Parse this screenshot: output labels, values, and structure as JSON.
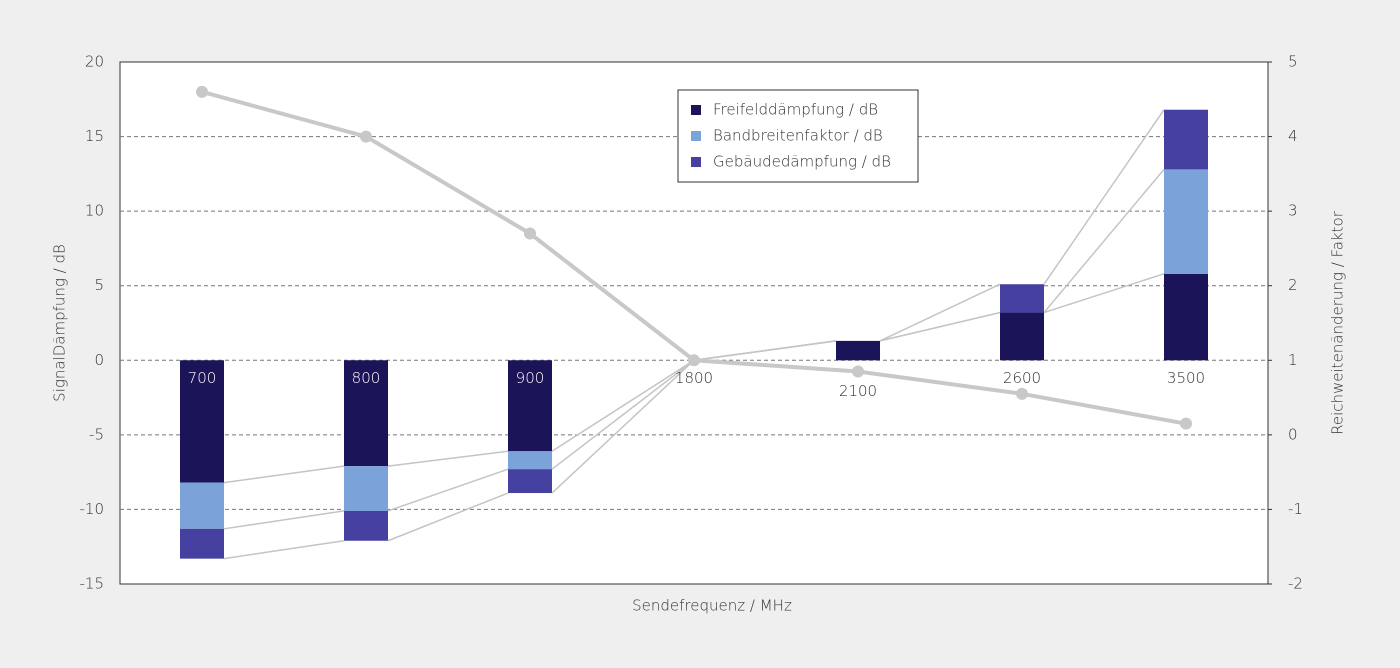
{
  "chart_data": {
    "type": "bar",
    "stacked": true,
    "x_label": "Sendefrequenz / MHz",
    "y_label": "SignalDämpfung / dB",
    "y2_label": "Reichweitenänderung / Faktor",
    "categories": [
      "700",
      "800",
      "900",
      "1800",
      "2100",
      "2600",
      "3500"
    ],
    "series": [
      {
        "name": "Freifelddämpfung / dB",
        "color": "#1b1458",
        "values": [
          -8.2,
          -7.1,
          -6.1,
          0,
          1.3,
          3.2,
          5.8
        ]
      },
      {
        "name": "Bandbreitenfaktor / dB",
        "color": "#7ba3d9",
        "values": [
          -3.1,
          -3.0,
          -1.2,
          0,
          0,
          0,
          7.0
        ]
      },
      {
        "name": "Gebäudedämpfung / dB",
        "color": "#4641a0",
        "values": [
          -2.0,
          -2.0,
          -1.6,
          0,
          0,
          1.9,
          4.0
        ]
      }
    ],
    "line": {
      "color": "#c8c8c8",
      "axis": "y2",
      "values": [
        4.6,
        4.0,
        2.7,
        1.0,
        0.85,
        0.55,
        0.15
      ]
    },
    "ylim": [
      -15,
      20
    ],
    "yticks": [
      -15,
      -10,
      -5,
      0,
      5,
      10,
      15,
      20
    ],
    "y2lim": [
      -2,
      5
    ],
    "y2ticks": [
      -2,
      -1,
      0,
      1,
      2,
      3,
      4,
      5
    ],
    "grid": true,
    "legend": "top-center"
  }
}
